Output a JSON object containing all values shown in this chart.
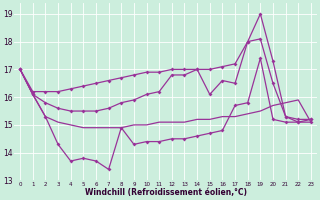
{
  "xlabel": "Windchill (Refroidissement éolien,°C)",
  "bg_color": "#cceedd",
  "line_color": "#993399",
  "ylim": [
    13,
    19.4
  ],
  "xlim": [
    -0.5,
    23.5
  ],
  "yticks": [
    13,
    14,
    15,
    16,
    17,
    18,
    19
  ],
  "xticks": [
    0,
    1,
    2,
    3,
    4,
    5,
    6,
    7,
    8,
    9,
    10,
    11,
    12,
    13,
    14,
    15,
    16,
    17,
    18,
    19,
    20,
    21,
    22,
    23
  ],
  "line_upper_x": [
    0,
    1,
    2,
    3,
    4,
    5,
    6,
    7,
    8,
    9,
    10,
    11,
    12,
    13,
    14,
    15,
    16,
    17,
    18,
    19,
    20,
    21,
    22,
    23
  ],
  "line_upper_y": [
    17.0,
    16.2,
    16.2,
    16.2,
    16.3,
    16.4,
    16.5,
    16.6,
    16.7,
    16.8,
    16.9,
    16.9,
    17.0,
    17.0,
    17.0,
    17.0,
    17.1,
    17.2,
    18.0,
    19.0,
    17.3,
    15.3,
    15.2,
    15.2
  ],
  "line_mid_x": [
    0,
    1,
    2,
    3,
    4,
    5,
    6,
    7,
    8,
    9,
    10,
    11,
    12,
    13,
    14,
    15,
    16,
    17,
    18,
    19,
    20,
    21,
    22,
    23
  ],
  "line_mid_y": [
    17.0,
    16.1,
    15.8,
    15.6,
    15.5,
    15.5,
    15.5,
    15.6,
    15.8,
    15.9,
    16.1,
    16.2,
    16.8,
    16.8,
    17.0,
    16.1,
    16.6,
    16.5,
    18.0,
    18.1,
    16.5,
    15.3,
    15.1,
    15.2
  ],
  "line_lower_x": [
    0,
    1,
    2,
    3,
    4,
    5,
    6,
    7,
    8,
    9,
    10,
    11,
    12,
    13,
    14,
    15,
    16,
    17,
    18,
    19,
    20,
    21,
    22,
    23
  ],
  "line_lower_y": [
    17.0,
    16.1,
    15.3,
    14.3,
    13.7,
    13.8,
    13.7,
    13.4,
    14.9,
    14.3,
    14.4,
    14.4,
    14.5,
    14.5,
    14.6,
    14.7,
    14.8,
    15.7,
    15.8,
    17.4,
    15.2,
    15.1,
    15.1,
    15.1
  ],
  "line_smooth_x": [
    0,
    1,
    2,
    3,
    4,
    5,
    6,
    7,
    8,
    9,
    10,
    11,
    12,
    13,
    14,
    15,
    16,
    17,
    18,
    19,
    20,
    21,
    22,
    23
  ],
  "line_smooth_y": [
    17.0,
    16.1,
    15.3,
    15.1,
    15.0,
    14.9,
    14.9,
    14.9,
    14.9,
    15.0,
    15.0,
    15.1,
    15.1,
    15.1,
    15.2,
    15.2,
    15.3,
    15.3,
    15.4,
    15.5,
    15.7,
    15.8,
    15.9,
    15.1
  ]
}
